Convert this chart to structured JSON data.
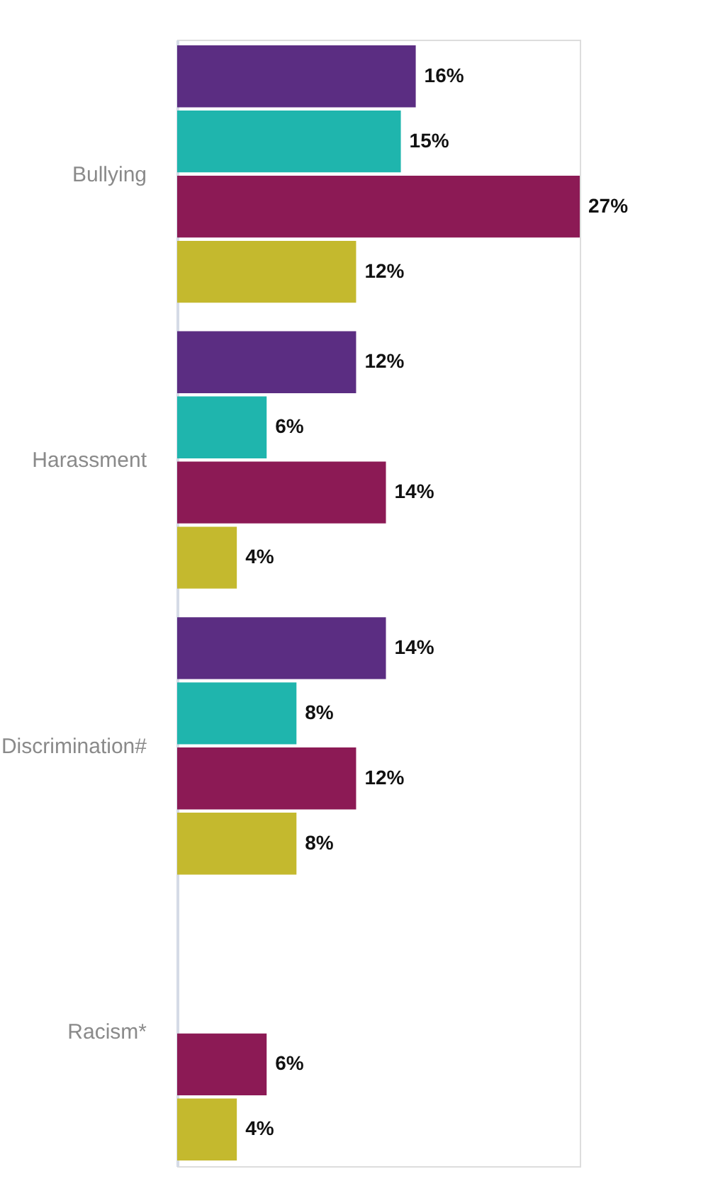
{
  "chart_data": {
    "type": "bar",
    "orientation": "horizontal",
    "categories": [
      "Bullying",
      "Harassment",
      "Discrimination#",
      "Racism*"
    ],
    "series": [
      {
        "color": "#5b2d82",
        "values": [
          16,
          12,
          14,
          null
        ],
        "value_labels": [
          "16%",
          "12%",
          "14%",
          null
        ]
      },
      {
        "color": "#1fb5ad",
        "values": [
          15,
          6,
          8,
          null
        ],
        "value_labels": [
          "15%",
          "6%",
          "8%",
          null
        ]
      },
      {
        "color": "#8c1a55",
        "values": [
          27,
          14,
          12,
          6
        ],
        "value_labels": [
          "27%",
          "14%",
          "12%",
          "6%"
        ]
      },
      {
        "color": "#c4b92e",
        "values": [
          12,
          4,
          8,
          4
        ],
        "value_labels": [
          "12%",
          "4%",
          "8%",
          "4%"
        ]
      }
    ],
    "tick_labels": "y",
    "grid": false
  }
}
